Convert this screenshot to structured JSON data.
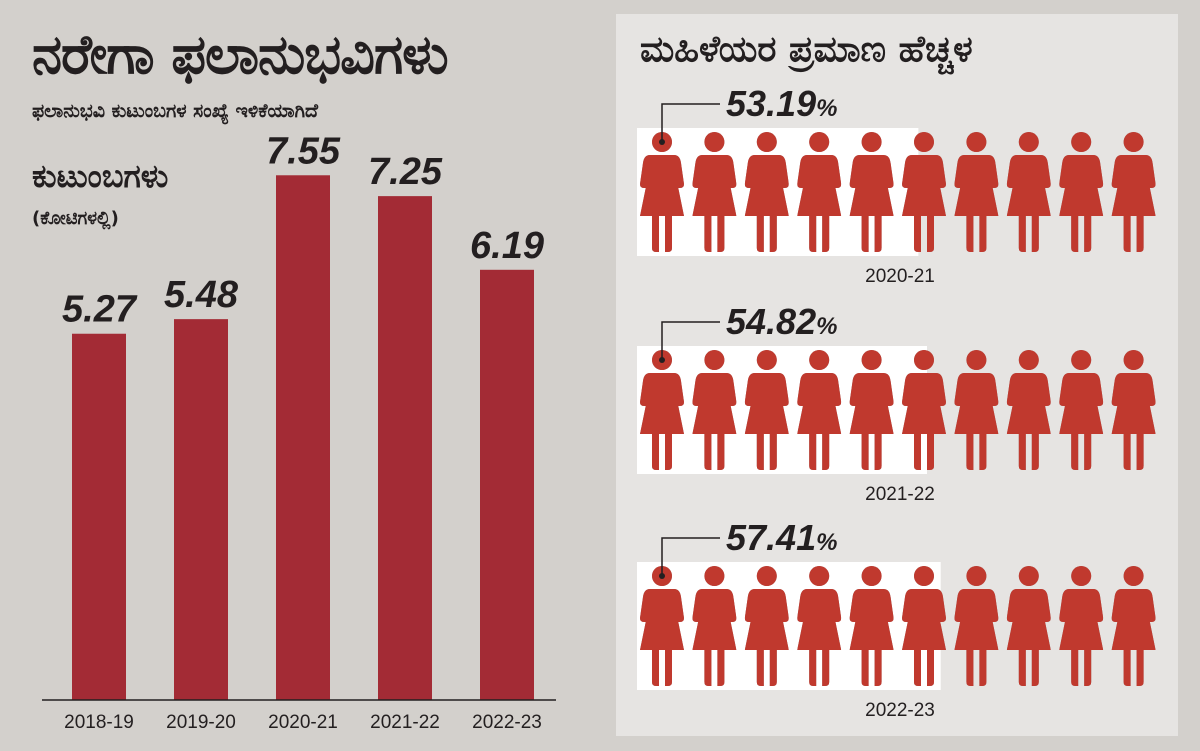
{
  "header": {
    "title": "ನರೇಗಾ ಫಲಾನುಭವಿಗಳು",
    "subtitle": "ಫಲಾನುಭವಿ ಕುಟುಂಬಗಳ ಸಂಖ್ಯೆ ಇಳಿಕೆಯಾಗಿದೆ"
  },
  "chart_data": [
    {
      "type": "bar",
      "title": "ನರೇಗಾ ಫಲಾನುಭವಿಗಳು",
      "subtitle": "ಫಲಾನುಭವಿ ಕುಟುಂಬಗಳ ಸಂಖ್ಯೆ ಇಳಿಕೆಯಾಗಿದೆ",
      "ylabel": "ಕುಟುಂಬಗಳು",
      "yunit": "(ಕೋಟಿಗಳಲ್ಲಿ)",
      "categories": [
        "2018-19",
        "2019-20",
        "2020-21",
        "2021-22",
        "2022-23"
      ],
      "values": [
        5.27,
        5.48,
        7.55,
        7.25,
        6.19
      ],
      "value_labels": [
        "5.27",
        "5.48",
        "7.55",
        "7.25",
        "6.19"
      ],
      "ylim": [
        0,
        8
      ],
      "grid": false,
      "bar_color": "#a32b35"
    },
    {
      "type": "pictograph",
      "title": "ಮಹಿಳೆಯರ ಪ್ರಮಾಣ ಹೆಚ್ಚಳ",
      "unit_icon": "woman-icon",
      "icons_per_row": 10,
      "filled_color": "#c0392e",
      "empty_color": "#8f8f8f",
      "rows": [
        {
          "year": "2020-21",
          "percent": 53.19,
          "percent_label": "53.19"
        },
        {
          "year": "2021-22",
          "percent": 54.82,
          "percent_label": "54.82"
        },
        {
          "year": "2022-23",
          "percent": 57.41,
          "percent_label": "57.41"
        }
      ],
      "percent_sign": "%"
    }
  ]
}
